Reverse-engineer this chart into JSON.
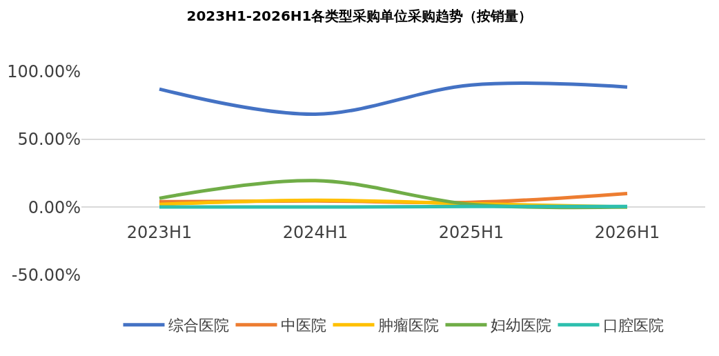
{
  "chart_data": {
    "type": "line",
    "title": "2023H1-2026H1各类型采购单位采购趋势（按销量）",
    "categories": [
      "2023H1",
      "2024H1",
      "2025H1",
      "2026H1"
    ],
    "series": [
      {
        "name": "综合医院",
        "color": "#4472c4",
        "values": [
          87,
          68.5,
          90,
          88.5
        ]
      },
      {
        "name": "中医院",
        "color": "#ed7d31",
        "values": [
          4,
          4.5,
          3.5,
          10
        ]
      },
      {
        "name": "肿瘤医院",
        "color": "#ffc000",
        "values": [
          2,
          5,
          2.5,
          0
        ]
      },
      {
        "name": "妇幼医院",
        "color": "#70ad47",
        "values": [
          6.5,
          19.5,
          2,
          0
        ]
      },
      {
        "name": "口腔医院",
        "color": "#2ebfae",
        "values": [
          0,
          0,
          0.5,
          0.5
        ]
      }
    ],
    "ylim": [
      -50,
      100
    ],
    "yticks": [
      {
        "value": -50,
        "label": "-50.00%"
      },
      {
        "value": 0,
        "label": "0.00%"
      },
      {
        "value": 50,
        "label": "50.00%"
      },
      {
        "value": 100,
        "label": "100.00%"
      }
    ],
    "grid": "y",
    "legend": "bottom",
    "marker": "none",
    "line_style": "solid"
  }
}
